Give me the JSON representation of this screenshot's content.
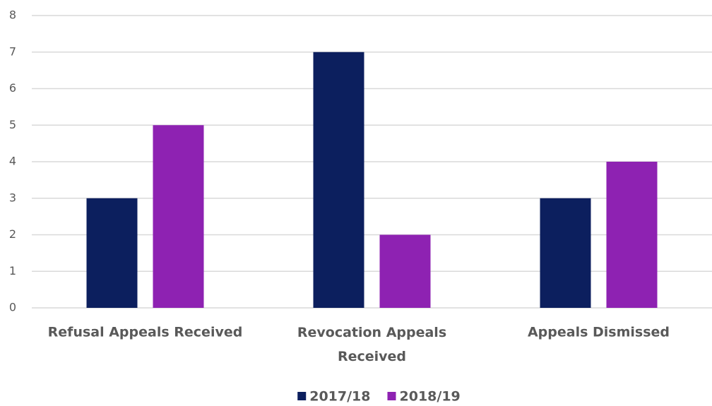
{
  "chart_data": {
    "type": "bar",
    "categories": [
      "Refusal Appeals Received",
      "Revocation Appeals Received",
      "Appeals Dismissed"
    ],
    "series": [
      {
        "name": "2017/18",
        "color": "#0c1f5e",
        "values": [
          3,
          7,
          3
        ]
      },
      {
        "name": "2018/19",
        "color": "#8e22b2",
        "values": [
          5,
          2,
          4
        ]
      }
    ],
    "ylim": [
      0,
      8
    ],
    "yticks": [
      0,
      1,
      2,
      3,
      4,
      5,
      6,
      7,
      8
    ],
    "grid": true,
    "legend": "bottom"
  }
}
